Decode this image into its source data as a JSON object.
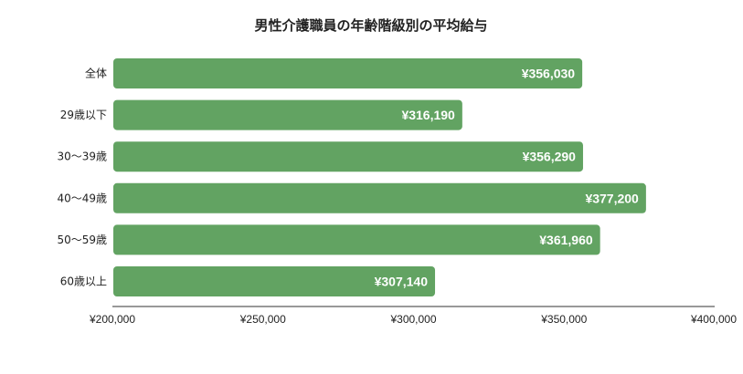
{
  "chart_data": {
    "type": "bar",
    "orientation": "horizontal",
    "title": "男性介護職員の年齢階級別の平均給与",
    "xlabel": "",
    "ylabel": "",
    "categories": [
      "全体",
      "29歳以下",
      "30〜39歳",
      "40〜49歳",
      "50〜59歳",
      "60歳以上"
    ],
    "values": [
      356030,
      316190,
      356290,
      377200,
      361960,
      307140
    ],
    "data_labels": [
      "¥356,030",
      "¥316,190",
      "¥356,290",
      "¥377,200",
      "¥361,960",
      "¥307,140"
    ],
    "xlim": [
      200000,
      400000
    ],
    "x_ticks": [
      200000,
      250000,
      300000,
      350000,
      400000
    ],
    "x_tick_labels": [
      "¥200,000",
      "¥250,000",
      "¥300,000",
      "¥350,000",
      "¥400,000"
    ],
    "grid": false,
    "legend": "none",
    "bar_color": "#62a362",
    "data_label_color": "#ffffff"
  }
}
